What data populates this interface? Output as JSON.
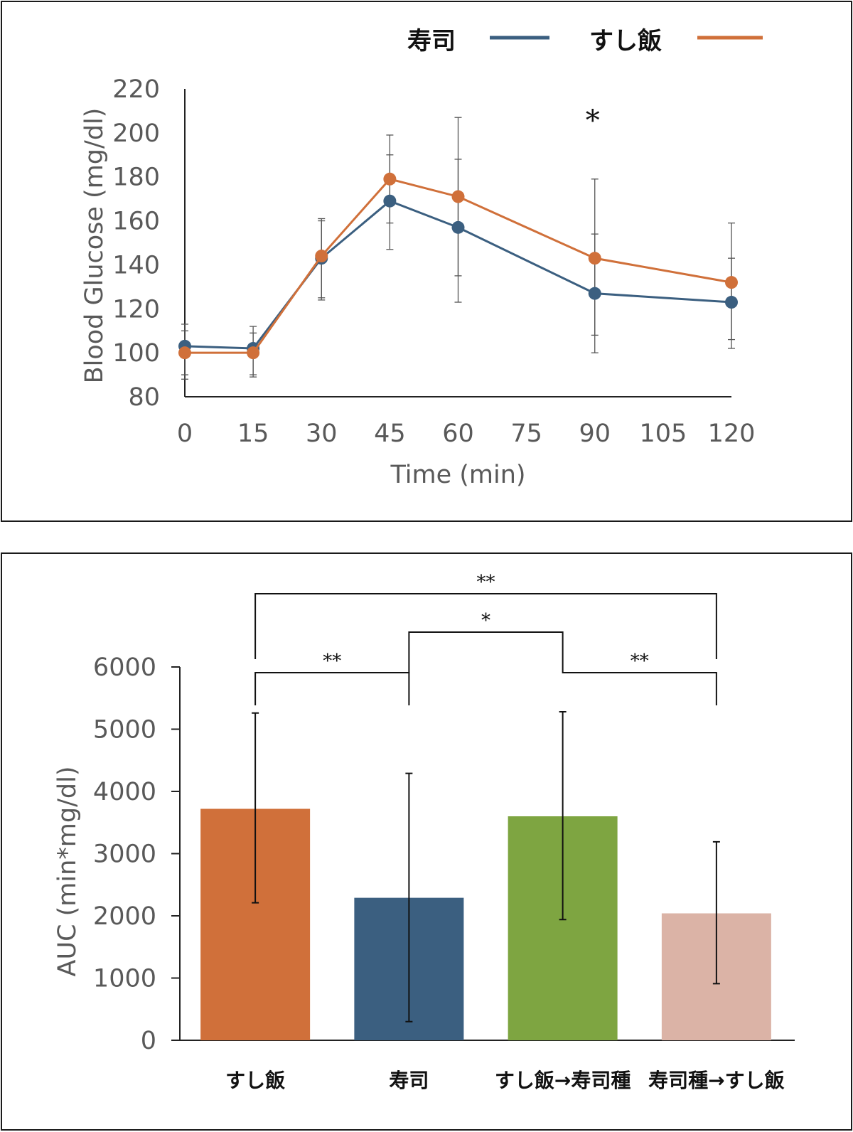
{
  "chart_data": [
    {
      "type": "line",
      "title": "",
      "xlabel": "Time (min)",
      "ylabel": "Blood Glucose (mg/dl)",
      "x": [
        0,
        15,
        30,
        45,
        60,
        90,
        120
      ],
      "xticks": [
        "0",
        "15",
        "30",
        "45",
        "60",
        "75",
        "90",
        "105",
        "120"
      ],
      "xlim": [
        0,
        120
      ],
      "ylim": [
        80,
        220
      ],
      "yticks": [
        "80",
        "100",
        "120",
        "140",
        "160",
        "180",
        "200",
        "220"
      ],
      "legend_position": "top-right",
      "series": [
        {
          "name": "寿司",
          "color": "#3B5F80",
          "values": [
            103,
            102,
            143,
            169,
            157,
            127,
            123
          ],
          "error_low": [
            90,
            90,
            125,
            147,
            123,
            100,
            102
          ],
          "error_high": [
            113,
            112,
            161,
            190,
            188,
            154,
            143
          ]
        },
        {
          "name": "すし飯",
          "color": "#D0703A",
          "values": [
            100,
            100,
            144,
            179,
            171,
            143,
            132
          ],
          "error_low": [
            88,
            89,
            124,
            159,
            135,
            108,
            106
          ],
          "error_high": [
            110,
            109,
            160,
            199,
            207,
            179,
            159
          ]
        }
      ],
      "annotations": [
        {
          "text": "*",
          "x": 90
        }
      ]
    },
    {
      "type": "bar",
      "title": "",
      "xlabel": "",
      "ylabel": "AUC (min*mg/dl)",
      "ylim": [
        0,
        6000
      ],
      "yticks": [
        "0",
        "1000",
        "2000",
        "3000",
        "4000",
        "5000",
        "6000"
      ],
      "categories": [
        "すし飯",
        "寿司",
        "すし飯→寿司種",
        "寿司種→すし飯"
      ],
      "values": [
        3720,
        2290,
        3600,
        2040
      ],
      "error_low": [
        2210,
        300,
        1940,
        910
      ],
      "error_high": [
        5260,
        4290,
        5280,
        3190
      ],
      "colors": [
        "#D0703A",
        "#3B5F80",
        "#7EA541",
        "#DBB3A6"
      ],
      "significance": [
        {
          "from": 0,
          "to": 1,
          "label": "**"
        },
        {
          "from": 1,
          "to": 2,
          "label": "*"
        },
        {
          "from": 2,
          "to": 3,
          "label": "**"
        },
        {
          "from": 0,
          "to": 3,
          "label": "**"
        }
      ]
    }
  ]
}
